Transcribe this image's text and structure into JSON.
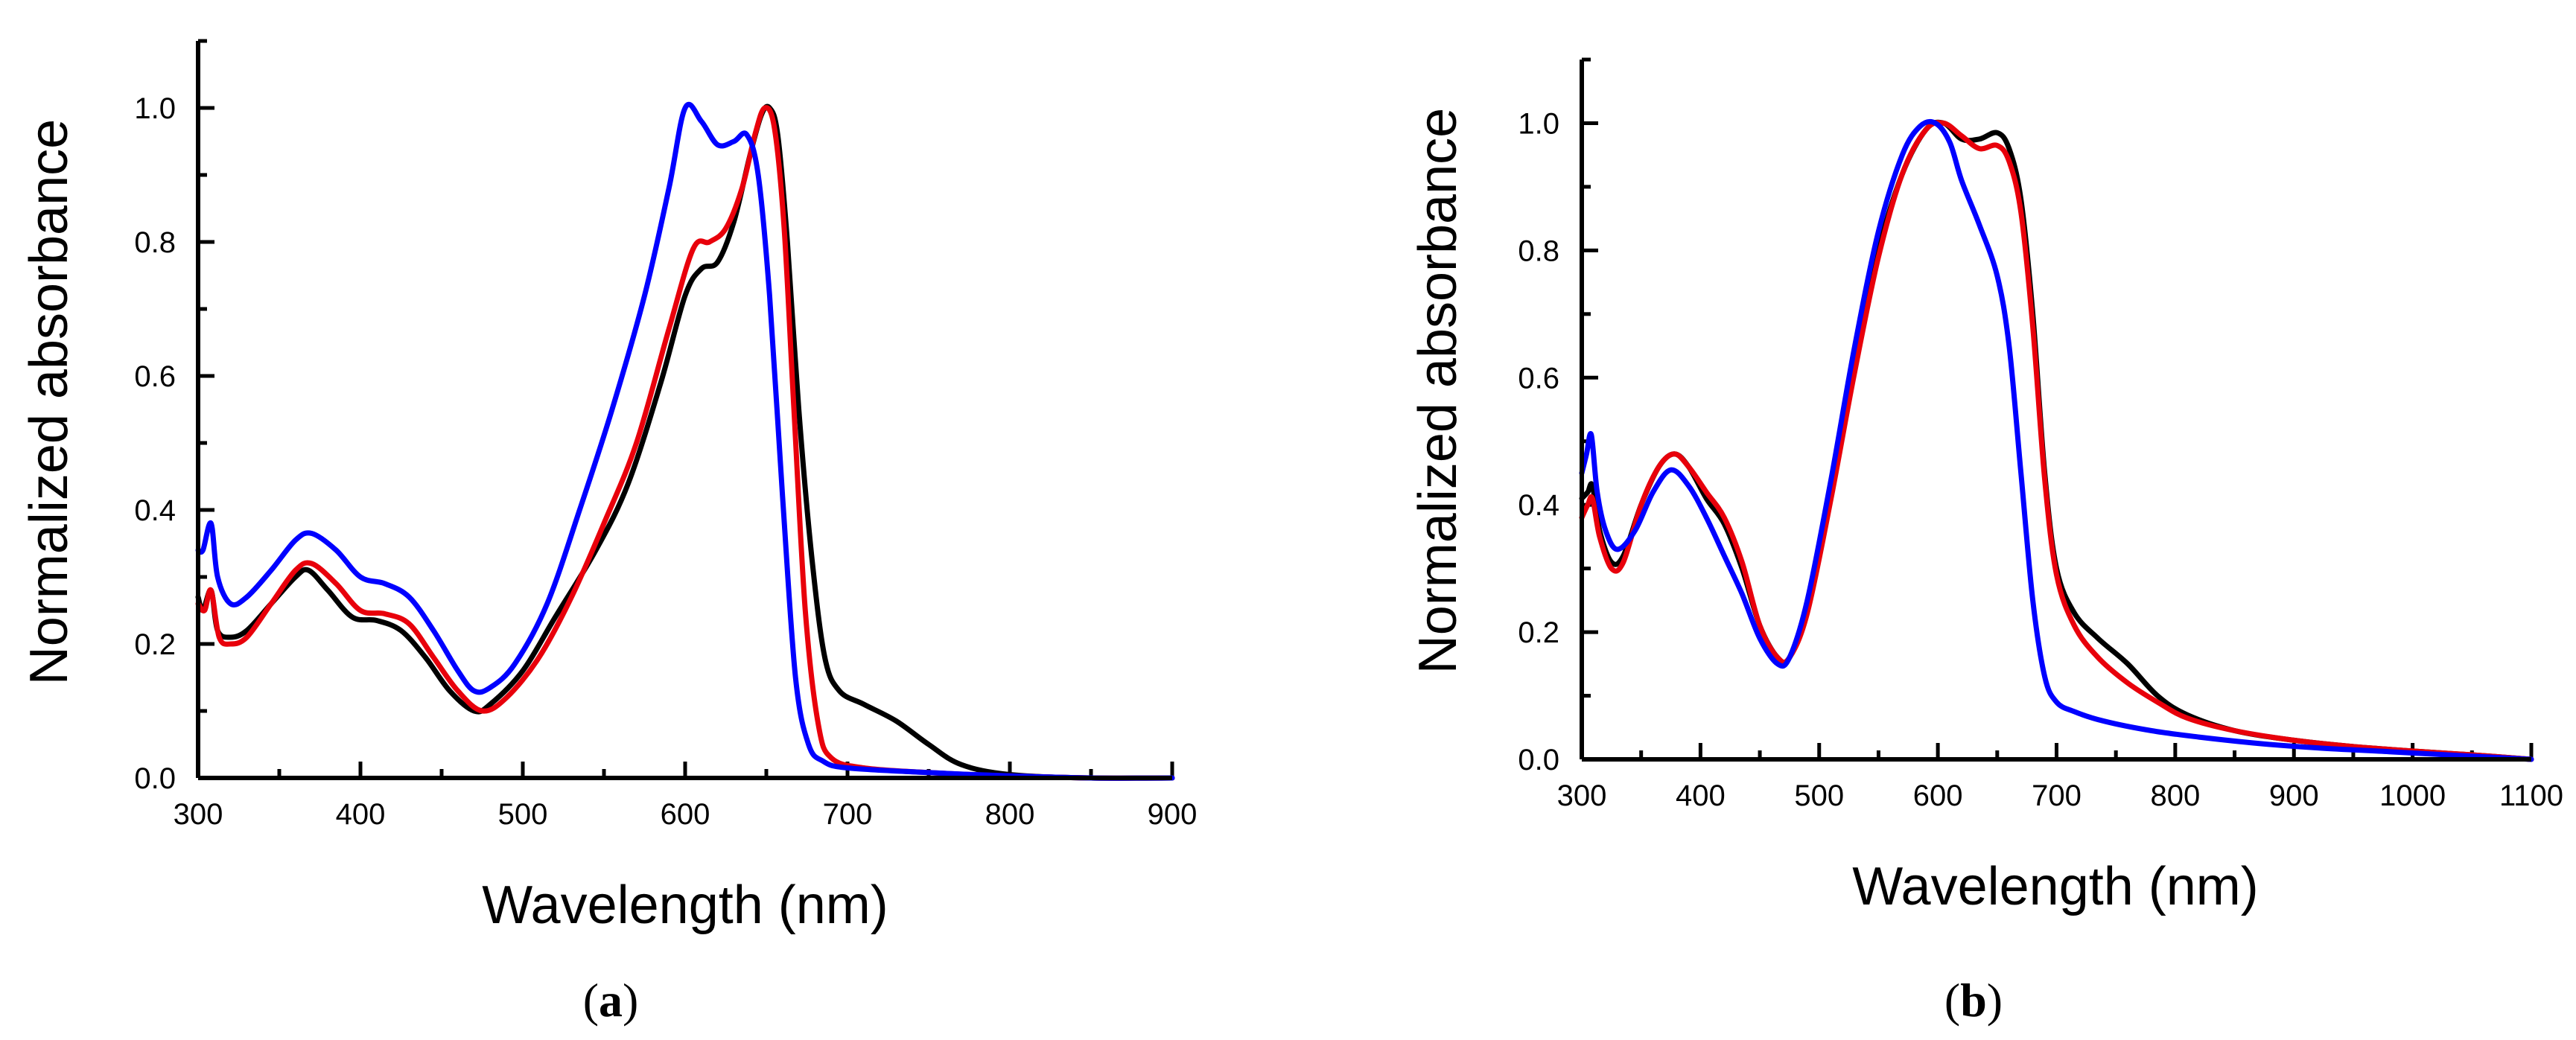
{
  "chart_data": [
    {
      "type": "line",
      "panel": "a",
      "xlabel": "Wavelength (nm)",
      "ylabel": "Normalized absorbance",
      "xlim": [
        300,
        900
      ],
      "ylim": [
        0,
        1.1
      ],
      "xticks": [
        300,
        400,
        500,
        600,
        700,
        800,
        900
      ],
      "yticks": [
        "0.0",
        "0.2",
        "0.4",
        "0.6",
        "0.8",
        "1.0"
      ],
      "yticks_values": [
        0,
        0.2,
        0.4,
        0.6,
        0.8,
        1.0
      ],
      "series": [
        {
          "name": "black",
          "color": "#000000",
          "points": [
            [
              300,
              0.27
            ],
            [
              303,
              0.25
            ],
            [
              308,
              0.28
            ],
            [
              312,
              0.22
            ],
            [
              320,
              0.21
            ],
            [
              330,
              0.22
            ],
            [
              345,
              0.26
            ],
            [
              360,
              0.3
            ],
            [
              368,
              0.31
            ],
            [
              380,
              0.28
            ],
            [
              395,
              0.24
            ],
            [
              410,
              0.235
            ],
            [
              425,
              0.22
            ],
            [
              440,
              0.18
            ],
            [
              455,
              0.13
            ],
            [
              470,
              0.1
            ],
            [
              480,
              0.11
            ],
            [
              500,
              0.16
            ],
            [
              520,
              0.24
            ],
            [
              545,
              0.34
            ],
            [
              565,
              0.44
            ],
            [
              585,
              0.59
            ],
            [
              600,
              0.72
            ],
            [
              610,
              0.76
            ],
            [
              620,
              0.77
            ],
            [
              630,
              0.83
            ],
            [
              640,
              0.93
            ],
            [
              647,
              0.99
            ],
            [
              652,
              1.0
            ],
            [
              657,
              0.96
            ],
            [
              663,
              0.8
            ],
            [
              670,
              0.55
            ],
            [
              678,
              0.33
            ],
            [
              686,
              0.18
            ],
            [
              695,
              0.13
            ],
            [
              710,
              0.11
            ],
            [
              730,
              0.085
            ],
            [
              750,
              0.05
            ],
            [
              770,
              0.02
            ],
            [
              800,
              0.005
            ],
            [
              850,
              0.0
            ],
            [
              900,
              0.0
            ]
          ]
        },
        {
          "name": "red",
          "color": "#e8000b",
          "points": [
            [
              300,
              0.26
            ],
            [
              304,
              0.25
            ],
            [
              308,
              0.28
            ],
            [
              313,
              0.21
            ],
            [
              320,
              0.2
            ],
            [
              330,
              0.21
            ],
            [
              345,
              0.26
            ],
            [
              360,
              0.31
            ],
            [
              370,
              0.32
            ],
            [
              385,
              0.29
            ],
            [
              400,
              0.25
            ],
            [
              415,
              0.245
            ],
            [
              430,
              0.23
            ],
            [
              445,
              0.18
            ],
            [
              460,
              0.13
            ],
            [
              475,
              0.1
            ],
            [
              490,
              0.12
            ],
            [
              510,
              0.18
            ],
            [
              530,
              0.27
            ],
            [
              550,
              0.38
            ],
            [
              570,
              0.5
            ],
            [
              590,
              0.67
            ],
            [
              605,
              0.79
            ],
            [
              615,
              0.8
            ],
            [
              625,
              0.82
            ],
            [
              635,
              0.88
            ],
            [
              643,
              0.96
            ],
            [
              649,
              1.0
            ],
            [
              655,
              0.97
            ],
            [
              661,
              0.82
            ],
            [
              667,
              0.55
            ],
            [
              674,
              0.25
            ],
            [
              682,
              0.08
            ],
            [
              690,
              0.03
            ],
            [
              710,
              0.015
            ],
            [
              750,
              0.008
            ],
            [
              800,
              0.003
            ],
            [
              850,
              0.0
            ],
            [
              900,
              0.0
            ]
          ]
        },
        {
          "name": "blue",
          "color": "#0000ff",
          "points": [
            [
              300,
              0.34
            ],
            [
              303,
              0.34
            ],
            [
              308,
              0.38
            ],
            [
              312,
              0.3
            ],
            [
              320,
              0.26
            ],
            [
              330,
              0.27
            ],
            [
              345,
              0.31
            ],
            [
              360,
              0.355
            ],
            [
              370,
              0.365
            ],
            [
              385,
              0.34
            ],
            [
              400,
              0.3
            ],
            [
              415,
              0.29
            ],
            [
              430,
              0.27
            ],
            [
              445,
              0.22
            ],
            [
              460,
              0.16
            ],
            [
              470,
              0.13
            ],
            [
              480,
              0.135
            ],
            [
              495,
              0.17
            ],
            [
              515,
              0.26
            ],
            [
              535,
              0.4
            ],
            [
              555,
              0.55
            ],
            [
              575,
              0.72
            ],
            [
              590,
              0.88
            ],
            [
              600,
              1.0
            ],
            [
              610,
              0.98
            ],
            [
              620,
              0.945
            ],
            [
              630,
              0.95
            ],
            [
              638,
              0.96
            ],
            [
              645,
              0.9
            ],
            [
              652,
              0.72
            ],
            [
              660,
              0.42
            ],
            [
              668,
              0.15
            ],
            [
              676,
              0.05
            ],
            [
              685,
              0.025
            ],
            [
              700,
              0.015
            ],
            [
              750,
              0.008
            ],
            [
              800,
              0.003
            ],
            [
              850,
              0.0
            ],
            [
              900,
              0.0
            ]
          ]
        }
      ]
    },
    {
      "type": "line",
      "panel": "b",
      "xlabel": "Wavelength (nm)",
      "ylabel": "Normalized absorbance",
      "xlim": [
        300,
        1100
      ],
      "ylim": [
        0,
        1.1
      ],
      "xticks": [
        300,
        400,
        500,
        600,
        700,
        800,
        900,
        1000,
        1100
      ],
      "yticks": [
        "0.0",
        "0.2",
        "0.4",
        "0.6",
        "0.8",
        "1.0"
      ],
      "yticks_values": [
        0,
        0.2,
        0.4,
        0.6,
        0.8,
        1.0
      ],
      "series": [
        {
          "name": "black",
          "color": "#000000",
          "points": [
            [
              300,
              0.41
            ],
            [
              305,
              0.42
            ],
            [
              309,
              0.43
            ],
            [
              315,
              0.36
            ],
            [
              325,
              0.31
            ],
            [
              335,
              0.32
            ],
            [
              350,
              0.4
            ],
            [
              365,
              0.46
            ],
            [
              378,
              0.48
            ],
            [
              390,
              0.46
            ],
            [
              405,
              0.41
            ],
            [
              420,
              0.37
            ],
            [
              435,
              0.3
            ],
            [
              450,
              0.21
            ],
            [
              465,
              0.16
            ],
            [
              475,
              0.16
            ],
            [
              490,
              0.24
            ],
            [
              510,
              0.42
            ],
            [
              530,
              0.62
            ],
            [
              550,
              0.8
            ],
            [
              570,
              0.92
            ],
            [
              590,
              0.99
            ],
            [
              605,
              1.0
            ],
            [
              620,
              0.975
            ],
            [
              635,
              0.975
            ],
            [
              650,
              0.985
            ],
            [
              660,
              0.96
            ],
            [
              670,
              0.88
            ],
            [
              680,
              0.7
            ],
            [
              690,
              0.45
            ],
            [
              700,
              0.3
            ],
            [
              715,
              0.23
            ],
            [
              735,
              0.19
            ],
            [
              760,
              0.15
            ],
            [
              785,
              0.1
            ],
            [
              810,
              0.07
            ],
            [
              850,
              0.045
            ],
            [
              900,
              0.03
            ],
            [
              950,
              0.02
            ],
            [
              1000,
              0.013
            ],
            [
              1050,
              0.007
            ],
            [
              1100,
              0.0
            ]
          ]
        },
        {
          "name": "red",
          "color": "#e8000b",
          "points": [
            [
              300,
              0.38
            ],
            [
              305,
              0.4
            ],
            [
              309,
              0.41
            ],
            [
              315,
              0.35
            ],
            [
              325,
              0.3
            ],
            [
              335,
              0.31
            ],
            [
              350,
              0.4
            ],
            [
              365,
              0.46
            ],
            [
              378,
              0.48
            ],
            [
              390,
              0.46
            ],
            [
              405,
              0.42
            ],
            [
              420,
              0.38
            ],
            [
              435,
              0.31
            ],
            [
              450,
              0.21
            ],
            [
              465,
              0.16
            ],
            [
              475,
              0.16
            ],
            [
              490,
              0.23
            ],
            [
              510,
              0.41
            ],
            [
              530,
              0.61
            ],
            [
              550,
              0.79
            ],
            [
              570,
              0.92
            ],
            [
              590,
              0.99
            ],
            [
              605,
              1.0
            ],
            [
              620,
              0.98
            ],
            [
              635,
              0.96
            ],
            [
              650,
              0.965
            ],
            [
              660,
              0.94
            ],
            [
              670,
              0.86
            ],
            [
              680,
              0.68
            ],
            [
              690,
              0.44
            ],
            [
              700,
              0.29
            ],
            [
              715,
              0.21
            ],
            [
              735,
              0.16
            ],
            [
              760,
              0.12
            ],
            [
              785,
              0.09
            ],
            [
              810,
              0.065
            ],
            [
              850,
              0.045
            ],
            [
              900,
              0.03
            ],
            [
              950,
              0.02
            ],
            [
              1000,
              0.013
            ],
            [
              1050,
              0.007
            ],
            [
              1100,
              0.0
            ]
          ]
        },
        {
          "name": "blue",
          "color": "#0000ff",
          "points": [
            [
              300,
              0.45
            ],
            [
              304,
              0.48
            ],
            [
              308,
              0.51
            ],
            [
              313,
              0.42
            ],
            [
              320,
              0.36
            ],
            [
              330,
              0.33
            ],
            [
              345,
              0.36
            ],
            [
              360,
              0.42
            ],
            [
              375,
              0.455
            ],
            [
              390,
              0.43
            ],
            [
              405,
              0.38
            ],
            [
              420,
              0.32
            ],
            [
              435,
              0.26
            ],
            [
              450,
              0.19
            ],
            [
              465,
              0.15
            ],
            [
              475,
              0.16
            ],
            [
              490,
              0.25
            ],
            [
              510,
              0.44
            ],
            [
              530,
              0.65
            ],
            [
              550,
              0.83
            ],
            [
              570,
              0.95
            ],
            [
              585,
              0.995
            ],
            [
              598,
              1.0
            ],
            [
              610,
              0.97
            ],
            [
              620,
              0.91
            ],
            [
              635,
              0.84
            ],
            [
              650,
              0.76
            ],
            [
              660,
              0.65
            ],
            [
              670,
              0.45
            ],
            [
              680,
              0.25
            ],
            [
              690,
              0.13
            ],
            [
              700,
              0.09
            ],
            [
              715,
              0.075
            ],
            [
              740,
              0.06
            ],
            [
              780,
              0.045
            ],
            [
              820,
              0.035
            ],
            [
              870,
              0.025
            ],
            [
              920,
              0.018
            ],
            [
              980,
              0.012
            ],
            [
              1040,
              0.006
            ],
            [
              1100,
              0.0
            ]
          ]
        }
      ]
    }
  ],
  "panels": [
    {
      "paren_open": "(",
      "letter": "a",
      "paren_close": ")"
    },
    {
      "paren_open": "(",
      "letter": "b",
      "paren_close": ")"
    }
  ]
}
